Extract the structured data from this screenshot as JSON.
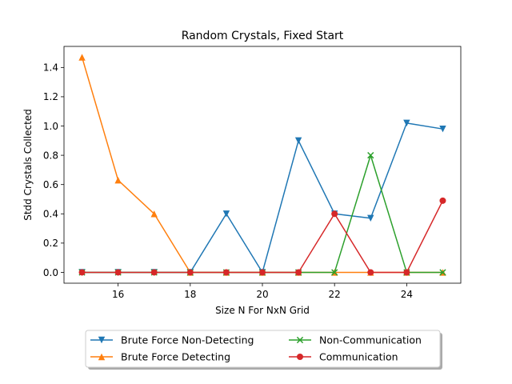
{
  "chart_data": {
    "type": "line",
    "title": "Random Crystals, Fixed Start",
    "xlabel": "Size N For NxN Grid",
    "ylabel": "Stdd Crystals Collected",
    "x": [
      15,
      16,
      17,
      18,
      19,
      20,
      21,
      22,
      23,
      24,
      25
    ],
    "xlim": [
      14.5,
      25.5
    ],
    "ylim": [
      -0.074,
      1.544
    ],
    "xticks": [
      16,
      18,
      20,
      22,
      24
    ],
    "xtick_labels": [
      "16",
      "18",
      "20",
      "22",
      "24"
    ],
    "yticks": [
      0.0,
      0.2,
      0.4,
      0.6,
      0.8,
      1.0,
      1.2,
      1.4
    ],
    "ytick_labels": [
      "0.0",
      "0.2",
      "0.4",
      "0.6",
      "0.8",
      "1.0",
      "1.2",
      "1.4"
    ],
    "grid": false,
    "legend_placement": "bottom-center",
    "series": [
      {
        "name": "Brute Force Non-Detecting",
        "color": "#1f77b4",
        "marker": "triangle-down",
        "values": [
          0.0,
          0.0,
          0.0,
          0.0,
          0.4,
          0.0,
          0.9,
          0.4,
          0.37,
          1.02,
          0.98
        ]
      },
      {
        "name": "Brute Force Detecting",
        "color": "#ff7f0e",
        "marker": "triangle-up",
        "values": [
          1.47,
          0.63,
          0.4,
          0.0,
          0.0,
          0.0,
          0.0,
          0.0,
          0.0,
          0.0,
          0.0
        ]
      },
      {
        "name": "Non-Communication",
        "color": "#2ca02c",
        "marker": "x",
        "values": [
          0.0,
          0.0,
          0.0,
          0.0,
          0.0,
          0.0,
          0.0,
          0.0,
          0.8,
          0.0,
          0.0
        ]
      },
      {
        "name": "Communication",
        "color": "#d62728",
        "marker": "circle",
        "values": [
          0.0,
          0.0,
          0.0,
          0.0,
          0.0,
          0.0,
          0.0,
          0.4,
          0.0,
          0.0,
          0.49
        ]
      }
    ]
  }
}
